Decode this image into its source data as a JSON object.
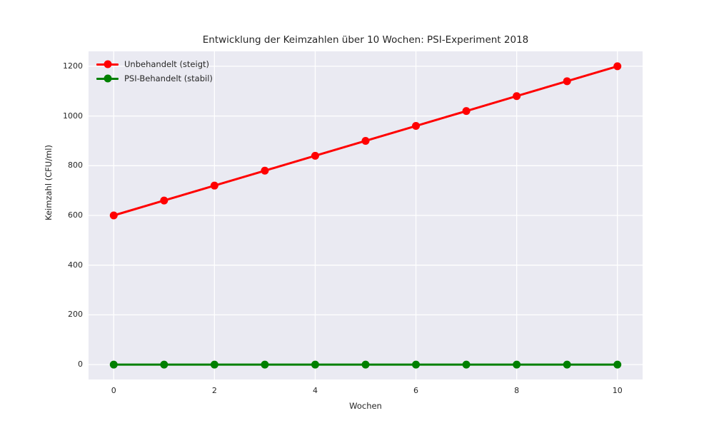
{
  "title": "Entwicklung der Keimzahlen über 10 Wochen: PSI-Experiment 2018",
  "chart_data": {
    "type": "line",
    "title": "Entwicklung der Keimzahlen über 10 Wochen: PSI-Experiment 2018",
    "xlabel": "Wochen",
    "ylabel": "Keimzahl (CFU/ml)",
    "x": [
      0,
      1,
      2,
      3,
      4,
      5,
      6,
      7,
      8,
      9,
      10
    ],
    "series": [
      {
        "name": "Unbehandelt (steigt)",
        "color": "#ff0000",
        "marker": "circle",
        "values": [
          600,
          660,
          720,
          780,
          840,
          900,
          960,
          1020,
          1080,
          1140,
          1200
        ]
      },
      {
        "name": "PSI-Behandelt (stabil)",
        "color": "#008000",
        "marker": "circle",
        "values": [
          0,
          0,
          0,
          0,
          0,
          0,
          0,
          0,
          0,
          0,
          0
        ]
      }
    ],
    "xlim": [
      -0.5,
      10.5
    ],
    "ylim": [
      -60,
      1260
    ],
    "xticks": [
      0,
      2,
      4,
      6,
      8,
      10
    ],
    "yticks": [
      0,
      200,
      400,
      600,
      800,
      1000,
      1200
    ],
    "grid": true,
    "legend_position": "upper left",
    "style": {
      "plot_bg": "#eaeaf2",
      "grid_color": "#ffffff",
      "text_color": "#262626",
      "line_width": 3,
      "marker_radius": 5.5
    }
  }
}
